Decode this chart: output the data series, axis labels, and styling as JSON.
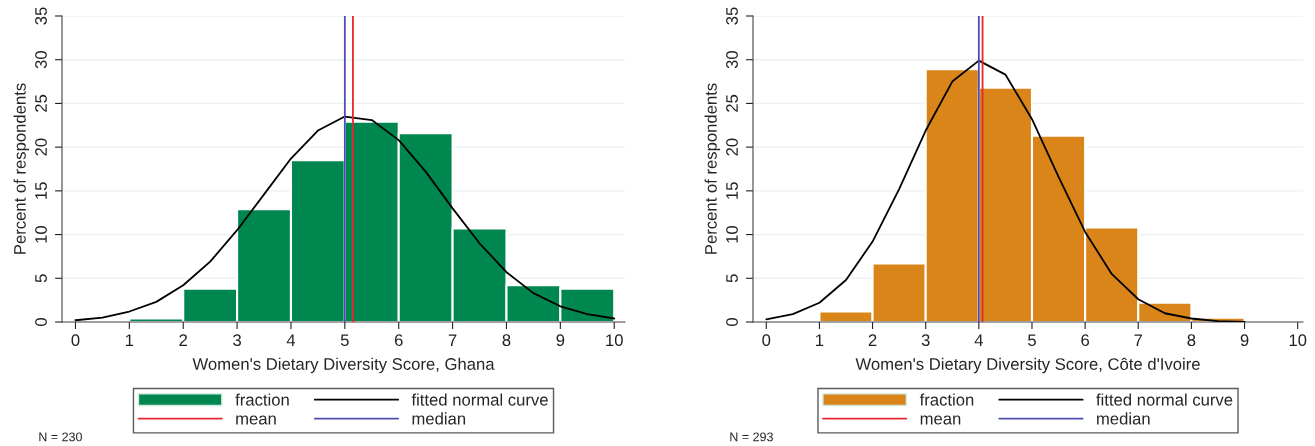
{
  "chart_data": [
    {
      "type": "histogram",
      "xlabel": "Women's Dietary Diversity Score, Ghana",
      "ylabel": "Percent of respondents",
      "annotations": [
        "N = 230"
      ],
      "series": [
        {
          "name": "fraction",
          "color": "#00874f",
          "bins": [
            1,
            2,
            3,
            4,
            5,
            6,
            7,
            8,
            9,
            10
          ],
          "values": [
            0.4,
            3.8,
            12.9,
            18.5,
            22.9,
            21.6,
            10.7,
            4.2,
            3.8
          ]
        },
        {
          "type": "line",
          "name": "fitted normal curve",
          "color": "#000000",
          "x": [
            0,
            0.5,
            1,
            1.5,
            2,
            2.5,
            3,
            3.5,
            4,
            4.5,
            5,
            5.5,
            6,
            6.5,
            7,
            7.5,
            8,
            8.5,
            9,
            9.5,
            10
          ],
          "values": [
            0.2,
            0.5,
            1.2,
            2.3,
            4.2,
            6.9,
            10.5,
            14.6,
            18.7,
            21.9,
            23.5,
            23.1,
            20.8,
            17.2,
            13.0,
            9.0,
            5.7,
            3.3,
            1.8,
            0.9,
            0.4
          ]
        }
      ],
      "ref_lines": [
        {
          "axis": "x",
          "value": 5.15,
          "label": "mean",
          "color": "#e8262d"
        },
        {
          "axis": "x",
          "value": 5.0,
          "label": "median",
          "color": "#4f4faf"
        }
      ],
      "xlim": [
        -0.25,
        10.2
      ],
      "ylim": [
        0,
        35
      ],
      "xticks": [
        0,
        1,
        2,
        3,
        4,
        5,
        6,
        7,
        8,
        9,
        10
      ],
      "yticks": [
        0,
        5,
        10,
        15,
        20,
        25,
        30,
        35
      ],
      "grid": "y",
      "legend": "bottom"
    },
    {
      "type": "histogram",
      "xlabel": "Women's Dietary Diversity Score, Côte d'Ivoire",
      "ylabel": "Percent of respondents",
      "annotations": [
        "N = 293"
      ],
      "series": [
        {
          "name": "fraction",
          "color": "#d9851a",
          "bins": [
            1,
            2,
            3,
            4,
            5,
            6,
            7,
            8,
            9
          ],
          "values": [
            1.2,
            6.7,
            28.9,
            26.8,
            21.3,
            10.8,
            2.2,
            0.5
          ]
        },
        {
          "type": "line",
          "name": "fitted normal curve",
          "color": "#000000",
          "x": [
            0,
            0.5,
            1,
            1.5,
            2,
            2.5,
            3,
            3.5,
            4,
            4.5,
            5,
            5.5,
            6,
            6.5,
            7,
            7.5,
            8,
            8.5,
            9
          ],
          "values": [
            0.3,
            0.9,
            2.2,
            4.8,
            9.2,
            15.2,
            21.9,
            27.5,
            29.9,
            28.3,
            23.2,
            16.6,
            10.3,
            5.5,
            2.6,
            1.0,
            0.4,
            0.1,
            0.0
          ]
        }
      ],
      "ref_lines": [
        {
          "axis": "x",
          "value": 4.07,
          "label": "mean",
          "color": "#e8262d"
        },
        {
          "axis": "x",
          "value": 4.0,
          "label": "median",
          "color": "#4f4faf"
        }
      ],
      "xlim": [
        -0.25,
        10.1
      ],
      "ylim": [
        0,
        35
      ],
      "xticks": [
        0,
        1,
        2,
        3,
        4,
        5,
        6,
        7,
        8,
        9,
        10
      ],
      "yticks": [
        0,
        5,
        10,
        15,
        20,
        25,
        30,
        35
      ],
      "grid": "y",
      "legend": "bottom"
    }
  ]
}
